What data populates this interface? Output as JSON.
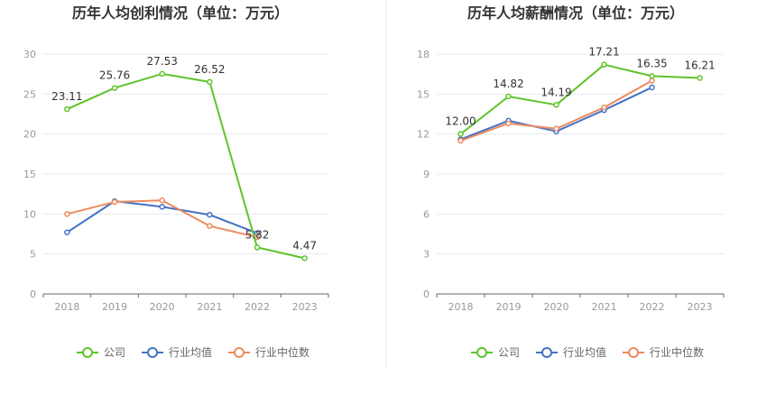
{
  "chart_data": [
    {
      "type": "line",
      "title": "历年人均创利情况（单位：万元）",
      "categories": [
        "2018",
        "2019",
        "2020",
        "2021",
        "2022",
        "2023"
      ],
      "ylim": [
        0,
        30
      ],
      "yticks": [
        0,
        5,
        10,
        15,
        20,
        25,
        30
      ],
      "grid": true,
      "legend_position": "bottom",
      "series": [
        {
          "name": "公司",
          "color": "#5ec42a",
          "values": [
            23.11,
            25.76,
            27.53,
            26.52,
            5.82,
            4.47
          ],
          "labels": [
            "23.11",
            "25.76",
            "27.53",
            "26.52",
            "5.82",
            "4.47"
          ]
        },
        {
          "name": "行业均值",
          "color": "#4472c4",
          "values": [
            7.7,
            11.6,
            10.9,
            9.9,
            7.6,
            null
          ]
        },
        {
          "name": "行业中位数",
          "color": "#ed8a5e",
          "values": [
            10.0,
            11.5,
            11.7,
            8.5,
            7.1,
            null
          ]
        }
      ]
    },
    {
      "type": "line",
      "title": "历年人均薪酬情况（单位：万元）",
      "categories": [
        "2018",
        "2019",
        "2020",
        "2021",
        "2022",
        "2023"
      ],
      "ylim": [
        0,
        18
      ],
      "yticks": [
        0,
        3,
        6,
        9,
        12,
        15,
        18
      ],
      "grid": true,
      "legend_position": "bottom",
      "series": [
        {
          "name": "公司",
          "color": "#5ec42a",
          "values": [
            12.0,
            14.82,
            14.19,
            17.21,
            16.35,
            16.21
          ],
          "labels": [
            "12.00",
            "14.82",
            "14.19",
            "17.21",
            "16.35",
            "16.21"
          ]
        },
        {
          "name": "行业均值",
          "color": "#4472c4",
          "values": [
            11.6,
            13.0,
            12.2,
            13.8,
            15.5,
            null
          ]
        },
        {
          "name": "行业中位数",
          "color": "#ed8a5e",
          "values": [
            11.5,
            12.8,
            12.4,
            14.0,
            16.0,
            null
          ]
        }
      ]
    }
  ]
}
